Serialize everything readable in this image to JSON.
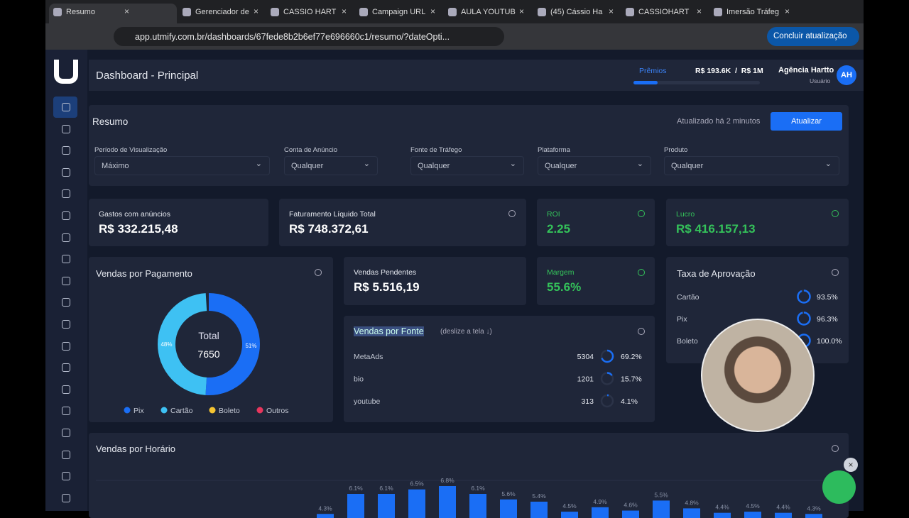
{
  "browser": {
    "tabs": [
      "Resumo",
      "Gerenciador de",
      "CASSIO HART",
      "Campaign URL",
      "AULA YOUTUB",
      "(45) Cássio Ha",
      "CASSIOHART",
      "Imersão Tráfeg"
    ],
    "url": "app.utmify.com.br/dashboards/67fede8b2b6ef77e696660c1/resumo/?dateOpti...",
    "update_button": "Concluir atualização"
  },
  "header": {
    "title": "Dashboard - Principal",
    "prizes": "Prêmios",
    "progress": "R$ 193.6K  /  R$ 1M",
    "user_name": "Agência Hartto",
    "user_role": "Usuário",
    "avatar": "AH"
  },
  "summary": {
    "title": "Resumo",
    "updated": "Atualizado há 2 minutos",
    "button": "Atualizar",
    "filters": [
      {
        "label": "Período de Visualização",
        "value": "Máximo"
      },
      {
        "label": "Conta de Anúncio",
        "value": "Qualquer"
      },
      {
        "label": "Fonte de Tráfego",
        "value": "Qualquer"
      },
      {
        "label": "Plataforma",
        "value": "Qualquer"
      },
      {
        "label": "Produto",
        "value": "Qualquer"
      }
    ]
  },
  "cards": [
    {
      "label": "Gastos com anúncios",
      "value": "R$ 332.215,48"
    },
    {
      "label": "Faturamento Líquido Total",
      "value": "R$ 748.372,61"
    },
    {
      "label": "ROI",
      "value": "2.25"
    },
    {
      "label": "Lucro",
      "value": "R$ 416.157,13"
    },
    {
      "label": "Vendas Pendentes",
      "value": "R$ 5.516,19"
    },
    {
      "label": "Margem",
      "value": "55.6%"
    }
  ],
  "payments": {
    "title": "Vendas por Pagamento",
    "total_label": "Total",
    "total": "7650",
    "slices": [
      {
        "name": "Pix",
        "value": 51,
        "label": "51%",
        "color": "#1a6ef5"
      },
      {
        "name": "Cartão",
        "value": 48,
        "label": "48%",
        "color": "#3ec1f3"
      }
    ],
    "legend": [
      {
        "name": "Pix",
        "color": "#1a6ef5"
      },
      {
        "name": "Cartão",
        "color": "#3ec1f3"
      },
      {
        "name": "Boleto",
        "color": "#f5c431"
      },
      {
        "name": "Outros",
        "color": "#e8365d"
      }
    ]
  },
  "sources": {
    "title": "Vendas por Fonte",
    "hint": "(deslize a tela ↓)",
    "rows": [
      {
        "name": "MetaAds",
        "count": "5304",
        "percent": 69.2,
        "percent_label": "69.2%"
      },
      {
        "name": "bio",
        "count": "1201",
        "percent": 15.7,
        "percent_label": "15.7%"
      },
      {
        "name": "youtube",
        "count": "313",
        "percent": 4.1,
        "percent_label": "4.1%"
      }
    ]
  },
  "approval": {
    "title": "Taxa de Aprovação",
    "rows": [
      {
        "name": "Cartão",
        "percent": 93.5,
        "percent_label": "93.5%"
      },
      {
        "name": "Pix",
        "percent": 96.3,
        "percent_label": "96.3%"
      },
      {
        "name": "Boleto",
        "percent": 100.0,
        "percent_label": "100.0%"
      }
    ]
  },
  "hourly": {
    "title": "Vendas por Horário",
    "values": [
      4.3,
      6.1,
      6.1,
      6.5,
      6.8,
      6.1,
      5.6,
      5.4,
      4.5,
      4.9,
      4.6,
      5.5,
      4.8,
      4.4,
      4.5,
      4.4,
      4.3
    ],
    "value_labels": [
      "4.3%",
      "6.1%",
      "6.1%",
      "6.5%",
      "6.8%",
      "6.1%",
      "5.6%",
      "5.4%",
      "4.5%",
      "4.9%",
      "4.6%",
      "5.5%",
      "4.8%",
      "4.4%",
      "4.5%",
      "4.4%",
      "4.3%"
    ],
    "color": "#1a6ef5"
  }
}
